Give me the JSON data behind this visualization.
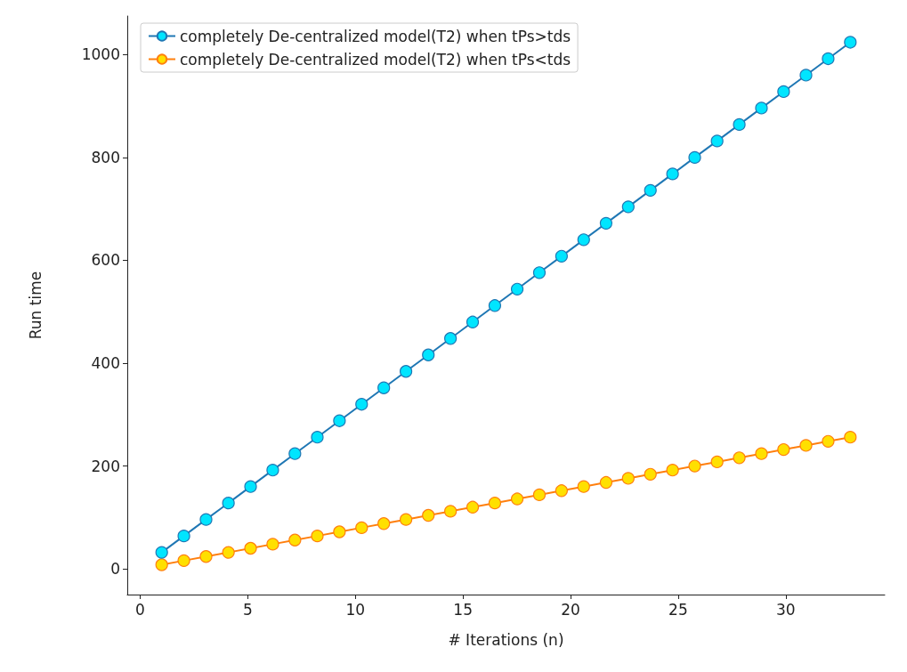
{
  "chart_data": {
    "type": "line",
    "xlabel": "# Iterations (n)",
    "ylabel": "Run time",
    "x": [
      1,
      2.03,
      3.06,
      4.1,
      5.13,
      6.16,
      7.19,
      8.23,
      9.26,
      10.29,
      11.32,
      12.35,
      13.39,
      14.42,
      15.45,
      16.48,
      17.52,
      18.55,
      19.58,
      20.61,
      21.65,
      22.68,
      23.71,
      24.74,
      25.77,
      26.81,
      27.84,
      28.87,
      29.9,
      30.94,
      31.97,
      33
    ],
    "series": [
      {
        "name": "completely De-centralized model(T2) when tPs>tds",
        "color": "#1f77b4",
        "values": [
          32,
          64,
          96,
          128,
          160,
          192,
          224,
          256,
          288,
          320,
          352,
          384,
          416,
          448,
          480,
          512,
          544,
          576,
          608,
          640,
          672,
          704,
          736,
          768,
          800,
          832,
          864,
          896,
          928,
          960,
          992,
          1024
        ]
      },
      {
        "name": "completely De-centralized model(T2) when tPs<tds",
        "color": "#ff7f0e",
        "values": [
          8,
          16,
          24,
          32,
          40,
          48,
          56,
          64,
          72,
          80,
          88,
          96,
          104,
          112,
          120,
          128,
          136,
          144,
          152,
          160,
          168,
          176,
          184,
          192,
          200,
          208,
          216,
          224,
          232,
          240,
          248,
          256
        ]
      }
    ],
    "xlim": [
      -0.6,
      34.6
    ],
    "xticks": [
      0,
      5,
      10,
      15,
      20,
      25,
      30
    ],
    "ylim": [
      -50,
      1075
    ],
    "yticks": [
      0,
      200,
      400,
      600,
      800,
      1000
    ],
    "grid": false,
    "legend": "top left",
    "marker": "circle",
    "line_style": "solid"
  }
}
